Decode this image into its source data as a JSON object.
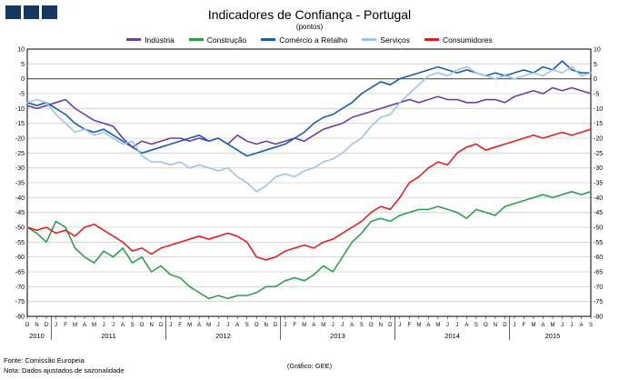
{
  "footer": {
    "source": "Fonte: Comissão Europeia",
    "note": "Nota: Dados ajustados de sazonalidade",
    "credit": "(Gráfico: GEE)"
  },
  "chart_data": {
    "type": "line",
    "title": "Indicadores de Confiança - Portugal",
    "subtitle": "(pontos)",
    "ylim": [
      -80,
      10
    ],
    "yticks": [
      10,
      5,
      0,
      -5,
      -10,
      -15,
      -20,
      -25,
      -30,
      -35,
      -40,
      -45,
      -50,
      -55,
      -60,
      -65,
      -70,
      -75,
      -80
    ],
    "grid": true,
    "legend_position": "top",
    "x_labels": [
      "O",
      "N",
      "D",
      "J",
      "F",
      "M",
      "A",
      "M",
      "J",
      "J",
      "A",
      "S",
      "O",
      "N",
      "D",
      "J",
      "F",
      "M",
      "A",
      "M",
      "J",
      "J",
      "A",
      "S",
      "O",
      "N",
      "D",
      "J",
      "F",
      "M",
      "A",
      "M",
      "J",
      "J",
      "A",
      "S",
      "O",
      "N",
      "D",
      "J",
      "F",
      "M",
      "A",
      "M",
      "J",
      "J",
      "A",
      "S",
      "O",
      "N",
      "D",
      "J",
      "F",
      "M",
      "A",
      "M",
      "J",
      "J",
      "A",
      "S"
    ],
    "year_groups": [
      {
        "label": "2010",
        "start": 0,
        "count": 3
      },
      {
        "label": "2011",
        "start": 3,
        "count": 12
      },
      {
        "label": "2012",
        "start": 15,
        "count": 12
      },
      {
        "label": "2013",
        "start": 27,
        "count": 12
      },
      {
        "label": "2014",
        "start": 39,
        "count": 12
      },
      {
        "label": "2015",
        "start": 51,
        "count": 9
      }
    ],
    "series": [
      {
        "id": "industria",
        "name": "Indústria",
        "color": "#6B3FA0",
        "values": [
          -9,
          -10,
          -9,
          -8,
          -7,
          -10,
          -12,
          -14,
          -15,
          -16,
          -20,
          -23,
          -21,
          -22,
          -21,
          -20,
          -20,
          -21,
          -20,
          -21,
          -20,
          -22,
          -19,
          -21,
          -22,
          -21,
          -22,
          -21,
          -20,
          -21,
          -19,
          -17,
          -16,
          -15,
          -13,
          -12,
          -11,
          -10,
          -9,
          -8,
          -7,
          -8,
          -7,
          -6,
          -7,
          -7,
          -8,
          -8,
          -7,
          -7,
          -8,
          -6,
          -5,
          -4,
          -5,
          -3,
          -4,
          -3,
          -4,
          -5
        ]
      },
      {
        "id": "construcao",
        "name": "Construção",
        "color": "#2E9E50",
        "values": [
          -50,
          -52,
          -55,
          -48,
          -50,
          -57,
          -60,
          -62,
          -58,
          -60,
          -57,
          -62,
          -60,
          -65,
          -63,
          -66,
          -67,
          -70,
          -72,
          -74,
          -73,
          -74,
          -73,
          -73,
          -72,
          -70,
          -70,
          -68,
          -67,
          -68,
          -66,
          -63,
          -65,
          -60,
          -55,
          -52,
          -48,
          -47,
          -48,
          -46,
          -45,
          -44,
          -44,
          -43,
          -44,
          -45,
          -47,
          -44,
          -45,
          -46,
          -43,
          -42,
          -41,
          -40,
          -39,
          -40,
          -39,
          -38,
          -39,
          -38
        ]
      },
      {
        "id": "comercio-a-retalho",
        "name": "Comércio a Retalho",
        "color": "#1A5DA6",
        "values": [
          -8,
          -9,
          -8,
          -10,
          -12,
          -15,
          -17,
          -18,
          -17,
          -19,
          -21,
          -23,
          -25,
          -24,
          -23,
          -22,
          -21,
          -20,
          -19,
          -21,
          -20,
          -22,
          -24,
          -26,
          -25,
          -24,
          -23,
          -22,
          -20,
          -18,
          -15,
          -13,
          -12,
          -10,
          -8,
          -5,
          -3,
          -1,
          -2,
          0,
          1,
          2,
          3,
          4,
          3,
          2,
          3,
          2,
          1,
          2,
          1,
          2,
          3,
          2,
          4,
          3,
          6,
          3,
          2,
          2
        ]
      },
      {
        "id": "servicos",
        "name": "Serviços",
        "color": "#9DC3E6",
        "values": [
          -8,
          -7,
          -8,
          -12,
          -15,
          -18,
          -17,
          -19,
          -18,
          -20,
          -22,
          -21,
          -26,
          -28,
          -28,
          -29,
          -28,
          -30,
          -29,
          -30,
          -31,
          -30,
          -33,
          -35,
          -38,
          -36,
          -33,
          -32,
          -33,
          -31,
          -30,
          -28,
          -27,
          -25,
          -22,
          -20,
          -16,
          -13,
          -12,
          -8,
          -5,
          -2,
          1,
          2,
          1,
          3,
          4,
          2,
          1,
          0,
          1,
          0,
          1,
          2,
          1,
          3,
          2,
          4,
          1,
          2
        ]
      },
      {
        "id": "consumidores",
        "name": "Consumidores",
        "color": "#DE2020",
        "values": [
          -50,
          -51,
          -50,
          -52,
          -51,
          -53,
          -50,
          -49,
          -51,
          -53,
          -55,
          -58,
          -57,
          -59,
          -57,
          -56,
          -55,
          -54,
          -53,
          -54,
          -53,
          -52,
          -53,
          -55,
          -60,
          -61,
          -60,
          -58,
          -57,
          -56,
          -57,
          -55,
          -54,
          -52,
          -50,
          -48,
          -45,
          -43,
          -44,
          -40,
          -35,
          -33,
          -30,
          -28,
          -29,
          -25,
          -23,
          -22,
          -24,
          -23,
          -22,
          -21,
          -20,
          -19,
          -20,
          -19,
          -18,
          -19,
          -18,
          -17
        ]
      }
    ]
  }
}
